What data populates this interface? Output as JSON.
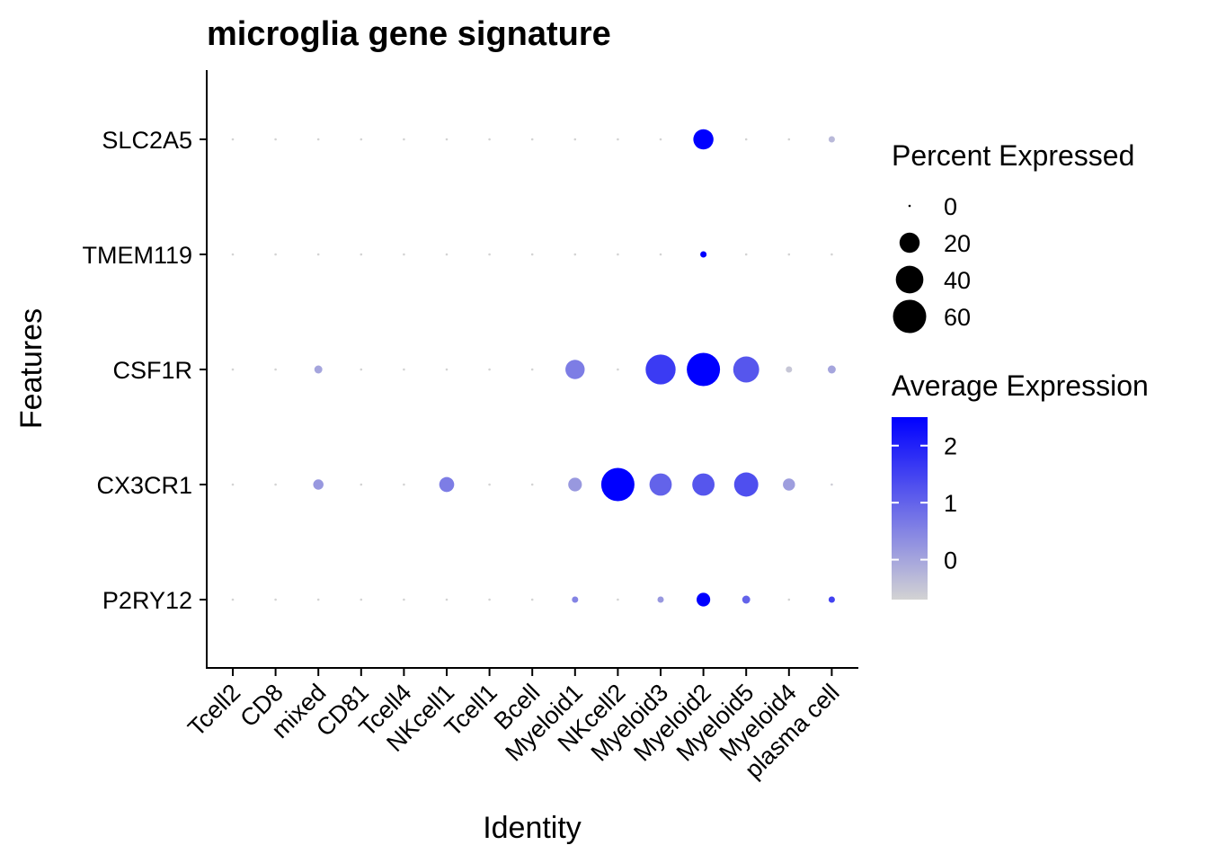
{
  "chart_data": {
    "type": "dot",
    "title": "microglia gene signature",
    "xlabel": "Identity",
    "ylabel": "Features",
    "categories": [
      "Tcell2",
      "CD8",
      "mixed",
      "CD81",
      "Tcell4",
      "NKcell1",
      "Tcell1",
      "Bcell",
      "Myeloid1",
      "NKcell2",
      "Myeloid3",
      "Myeloid2",
      "Myeloid5",
      "Myeloid4",
      "plasma cell"
    ],
    "features": [
      "SLC2A5",
      "TMEM119",
      "CSF1R",
      "CX3CR1",
      "P2RY12"
    ],
    "percent_expressed": [
      [
        0,
        0,
        0,
        0,
        0,
        0,
        0,
        0,
        0,
        0,
        0,
        20,
        0,
        0,
        1
      ],
      [
        0,
        0,
        0,
        0,
        0,
        0,
        0,
        0,
        0,
        0,
        0,
        1,
        0,
        0,
        0
      ],
      [
        0,
        0,
        2,
        0,
        0,
        0,
        0,
        0,
        18,
        0,
        48,
        60,
        35,
        1,
        2
      ],
      [
        0,
        0,
        4,
        0,
        0,
        10,
        0,
        0,
        8,
        60,
        25,
        25,
        30,
        6,
        0
      ],
      [
        0,
        0,
        0,
        0,
        0,
        0,
        0,
        0,
        1,
        0,
        1,
        8,
        2,
        0,
        1
      ]
    ],
    "average_expression": [
      [
        -0.7,
        -0.7,
        -0.7,
        -0.7,
        -0.7,
        -0.7,
        -0.7,
        -0.7,
        -0.7,
        -0.7,
        -0.7,
        2.5,
        -0.7,
        -0.7,
        -0.3
      ],
      [
        -0.7,
        -0.7,
        -0.7,
        -0.7,
        -0.7,
        -0.7,
        -0.7,
        -0.7,
        -0.7,
        -0.7,
        -0.7,
        2.5,
        -0.7,
        -0.7,
        -0.7
      ],
      [
        -0.7,
        -0.7,
        0.0,
        -0.7,
        -0.7,
        -0.7,
        -0.7,
        -0.7,
        0.6,
        -0.7,
        1.6,
        2.5,
        1.2,
        -0.5,
        0.0
      ],
      [
        -0.7,
        -0.7,
        0.2,
        -0.7,
        -0.7,
        0.6,
        -0.7,
        -0.7,
        0.2,
        2.5,
        1.0,
        1.2,
        1.3,
        0.1,
        -0.6
      ],
      [
        -0.7,
        -0.7,
        -0.7,
        -0.7,
        -0.7,
        -0.7,
        -0.7,
        -0.7,
        0.5,
        -0.7,
        0.2,
        2.5,
        1.0,
        -0.7,
        1.5
      ]
    ],
    "size_legend": {
      "title": "Percent Expressed",
      "values": [
        0,
        20,
        40,
        60
      ],
      "labels": [
        "0",
        "20",
        "40",
        "60"
      ]
    },
    "color_legend": {
      "title": "Average Expression",
      "range": [
        -0.7,
        2.5
      ],
      "ticks": [
        0,
        1,
        2
      ],
      "tick_labels": [
        "0",
        "1",
        "2"
      ],
      "low_color": "#d3d3d3",
      "high_color": "#0000ff"
    },
    "legend_position": "right"
  }
}
